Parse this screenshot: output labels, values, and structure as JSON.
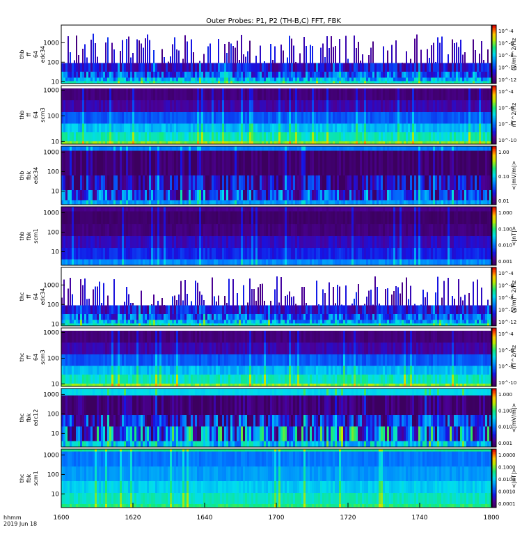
{
  "chart_data": {
    "type": "heatmap",
    "title": "Outer Probes: P1, P2 (TH-B,C) FFT, FBK",
    "x_axis": {
      "label_lines": [
        "hhmm",
        "2019 Jun 18"
      ],
      "ticks": [
        "1600",
        "1620",
        "1640",
        "1700",
        "1720",
        "1740",
        "1800"
      ],
      "range": [
        "16:00",
        "18:00"
      ]
    },
    "panels": [
      {
        "label_lines": [
          "thb",
          "ff",
          "64",
          "edc34"
        ],
        "y_ticks": [
          "1000",
          "100",
          "10"
        ],
        "y_scale": "log",
        "y_range": [
          8,
          8000
        ],
        "colorbar": {
          "unit": "(V/m)^2/Hz",
          "labels": [
            "10^-4",
            "10^-6",
            "10^-8",
            "10^-10",
            "10^-12"
          ]
        },
        "pattern": "efield"
      },
      {
        "label_lines": [
          "thb",
          "ff",
          "64",
          "scm3"
        ],
        "y_ticks": [
          "1000",
          "100",
          "10"
        ],
        "y_scale": "log",
        "y_range": [
          8,
          1500
        ],
        "colorbar": {
          "unit": "nT^2/Hz",
          "labels": [
            "10^-4",
            "10^-6",
            "10^-8",
            "10^-10"
          ]
        },
        "pattern": "scm"
      },
      {
        "label_lines": [
          "thb",
          "fbk",
          "edc34"
        ],
        "y_ticks": [
          "1000",
          "100",
          "10"
        ],
        "y_scale": "log",
        "y_range": [
          2,
          2000
        ],
        "colorbar": {
          "unit": "<|mV/m|>",
          "labels": [
            "1.00",
            "0.10",
            "0.01"
          ]
        },
        "pattern": "fbk_e"
      },
      {
        "label_lines": [
          "thb",
          "fbk",
          "scm1"
        ],
        "y_ticks": [
          "1000",
          "100",
          "10"
        ],
        "y_scale": "log",
        "y_range": [
          2,
          2000
        ],
        "colorbar": {
          "unit": "<|nT|>",
          "labels": [
            "1.000",
            "0.100",
            "0.010",
            "0.001"
          ]
        },
        "pattern": "fbk_b"
      },
      {
        "label_lines": [
          "thc",
          "ff",
          "64",
          "edc34"
        ],
        "y_ticks": [
          "1000",
          "100",
          "10"
        ],
        "y_scale": "log",
        "y_range": [
          8,
          8000
        ],
        "colorbar": {
          "unit": "(V/m)^2/Hz",
          "labels": [
            "10^-4",
            "10^-6",
            "10^-8",
            "10^-10",
            "10^-12"
          ]
        },
        "pattern": "efield"
      },
      {
        "label_lines": [
          "thc",
          "ff",
          "64",
          "scm3"
        ],
        "y_ticks": [
          "1000",
          "100",
          "10"
        ],
        "y_scale": "log",
        "y_range": [
          8,
          1500
        ],
        "colorbar": {
          "unit": "nT^2/Hz",
          "labels": [
            "10^-4",
            "10^-6",
            "10^-8",
            "10^-10"
          ]
        },
        "pattern": "scm"
      },
      {
        "label_lines": [
          "thc",
          "fbk",
          "edc12"
        ],
        "y_ticks": [
          "1000",
          "100",
          "10"
        ],
        "y_scale": "log",
        "y_range": [
          2,
          2000
        ],
        "colorbar": {
          "unit": "<|mV/m|>",
          "labels": [
            "1.000",
            "0.100",
            "0.010",
            "0.001"
          ]
        },
        "pattern": "fbk_e2"
      },
      {
        "label_lines": [
          "thc",
          "fbk",
          "scm1"
        ],
        "y_ticks": [
          "1000",
          "100",
          "10"
        ],
        "y_scale": "log",
        "y_range": [
          2,
          2000
        ],
        "colorbar": {
          "unit": "<|nT|>",
          "labels": [
            "1.0000",
            "0.1000",
            "0.0100",
            "0.0010",
            "0.0001"
          ]
        },
        "pattern": "fbk_b2"
      }
    ]
  }
}
